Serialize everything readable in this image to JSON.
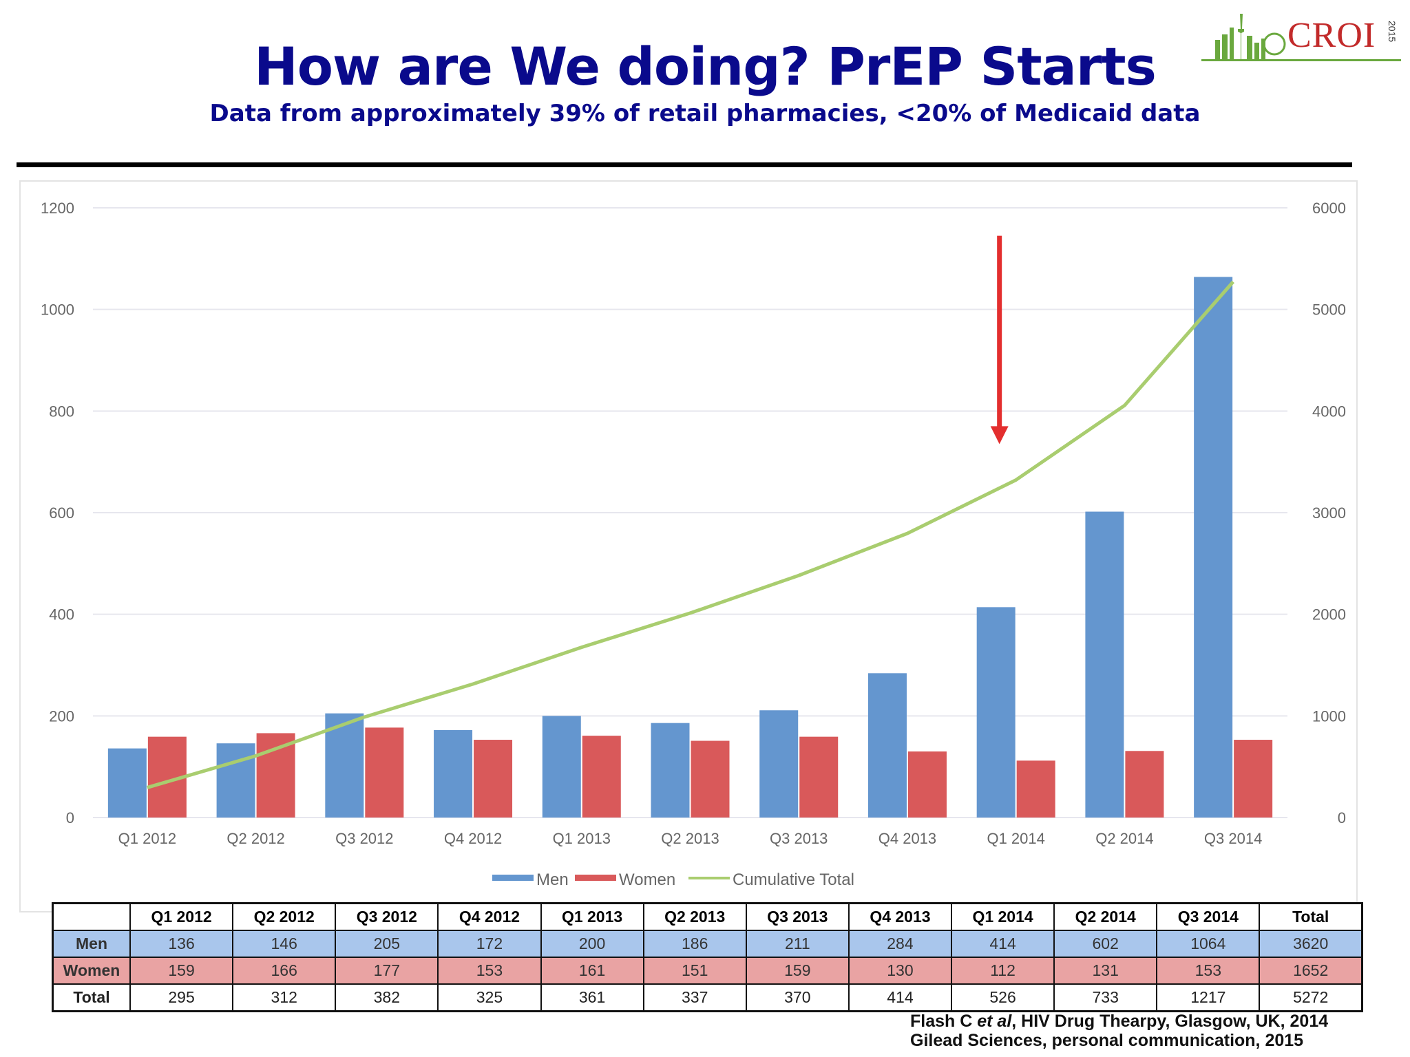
{
  "slide": {
    "title": "How are We doing? PrEP Starts",
    "subtitle": "Data from approximately 39% of retail pharmacies, <20% of Medicaid data"
  },
  "logo": {
    "text": "CROI",
    "year": "2015"
  },
  "colors": {
    "men": "#6496cf",
    "women": "#d9595a",
    "cumulative": "#a9cd6f",
    "arrow": "#e32e2e",
    "title": "#0a0a8c"
  },
  "chart_data": {
    "type": "bar",
    "categories": [
      "Q1 2012",
      "Q2 2012",
      "Q3 2012",
      "Q4 2012",
      "Q1 2013",
      "Q2 2013",
      "Q3 2013",
      "Q4 2013",
      "Q1 2014",
      "Q2 2014",
      "Q3 2014"
    ],
    "series": [
      {
        "name": "Men",
        "type": "bar",
        "axis": "left",
        "values": [
          136,
          146,
          205,
          172,
          200,
          186,
          211,
          284,
          414,
          602,
          1064
        ]
      },
      {
        "name": "Women",
        "type": "bar",
        "axis": "left",
        "values": [
          159,
          166,
          177,
          153,
          161,
          151,
          159,
          130,
          112,
          131,
          153
        ]
      },
      {
        "name": "Cumulative Total",
        "type": "line",
        "axis": "right",
        "values": [
          295,
          607,
          989,
          1314,
          1675,
          2012,
          2382,
          2796,
          3322,
          4055,
          5272
        ]
      }
    ],
    "y_left": {
      "ylim": [
        0,
        1200
      ],
      "ticks": [
        "0",
        "200",
        "400",
        "600",
        "800",
        "1000",
        "1200"
      ]
    },
    "y_right": {
      "ylim": [
        0,
        6000
      ],
      "ticks": [
        "0",
        "1000",
        "2000",
        "3000",
        "4000",
        "5000",
        "6000"
      ]
    },
    "annotation": {
      "type": "arrow",
      "category": "Q1 2014",
      "from_value_left": 1145,
      "to_value_left": 735
    },
    "legend": [
      "Men",
      "Women",
      "Cumulative Total"
    ],
    "legend_position": "bottom",
    "grid": true
  },
  "table": {
    "headers": [
      "",
      "Q1 2012",
      "Q2 2012",
      "Q3 2012",
      "Q4 2012",
      "Q1 2013",
      "Q2 2013",
      "Q3 2013",
      "Q4 2013",
      "Q1 2014",
      "Q2 2014",
      "Q3 2014",
      "Total"
    ],
    "rows": [
      {
        "label": "Men",
        "values": [
          "136",
          "146",
          "205",
          "172",
          "200",
          "186",
          "211",
          "284",
          "414",
          "602",
          "1064",
          "3620"
        ]
      },
      {
        "label": "Women",
        "values": [
          "159",
          "166",
          "177",
          "153",
          "161",
          "151",
          "159",
          "130",
          "112",
          "131",
          "153",
          "1652"
        ]
      },
      {
        "label": "Total",
        "values": [
          "295",
          "312",
          "382",
          "325",
          "361",
          "337",
          "370",
          "414",
          "526",
          "733",
          "1217",
          "5272"
        ]
      }
    ]
  },
  "footnote": {
    "line1_a": "Flash C ",
    "line1_b": "et al",
    "line1_c": ", HIV Drug Thearpy, Glasgow, UK, 2014",
    "line2": "Gilead Sciences, personal communication, 2015"
  }
}
